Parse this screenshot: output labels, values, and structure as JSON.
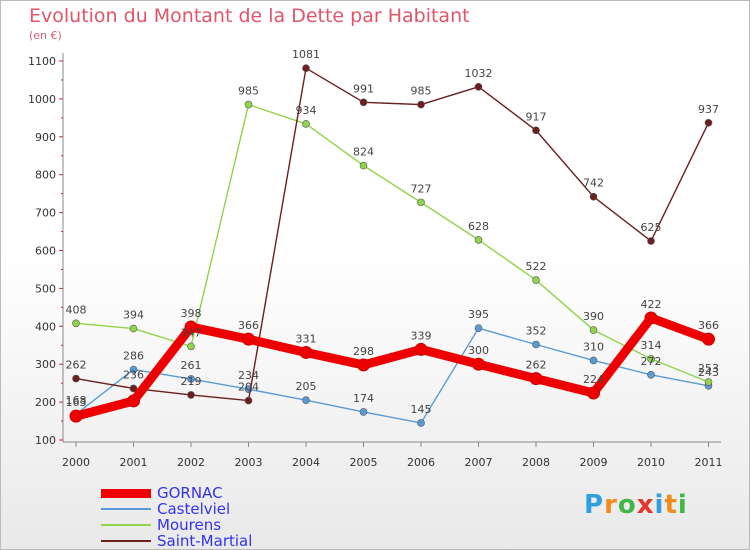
{
  "chart_data": {
    "type": "line",
    "title": "Evolution du Montant de la Dette par Habitant",
    "unit_label": "(en €)",
    "x": [
      "2000",
      "2001",
      "2002",
      "2003",
      "2004",
      "2005",
      "2006",
      "2007",
      "2008",
      "2009",
      "2010",
      "2011"
    ],
    "ylim": [
      100,
      1100
    ],
    "yticks": [
      100,
      200,
      300,
      400,
      500,
      600,
      700,
      800,
      900,
      1000,
      1100
    ],
    "grid": false,
    "legend_position": "bottom-left",
    "series": [
      {
        "name": "GORNAC",
        "color": "#ee0000",
        "values": [
          163,
          203,
          398,
          366,
          331,
          298,
          339,
          300,
          262,
          224,
          422,
          366
        ],
        "labels": [
          "163",
          "",
          "398",
          "366",
          "331",
          "298",
          "339",
          "300",
          "262",
          "224",
          "422",
          "366"
        ]
      },
      {
        "name": "Castelviel",
        "color": "#5b9bd5",
        "values": [
          168,
          286,
          261,
          234,
          205,
          174,
          145,
          395,
          352,
          310,
          272,
          243
        ],
        "labels": [
          "168",
          "286",
          "261",
          "234",
          "205",
          "174",
          "145",
          "395",
          "352",
          "310",
          "272",
          "243"
        ]
      },
      {
        "name": "Mourens",
        "color": "#8fd44a",
        "values": [
          408,
          394,
          347,
          985,
          934,
          824,
          727,
          628,
          522,
          390,
          314,
          253
        ],
        "labels": [
          "408",
          "394",
          "347",
          "985",
          "934",
          "824",
          "727",
          "628",
          "522",
          "390",
          "314",
          "253"
        ]
      },
      {
        "name": "Saint-Martial",
        "color": "#6b1f1f",
        "values": [
          262,
          236,
          219,
          204,
          1081,
          991,
          985,
          1032,
          917,
          742,
          625,
          937
        ],
        "labels": [
          "262",
          "236",
          "219",
          "204",
          "1081",
          "991",
          "985",
          "1032",
          "917",
          "742",
          "625",
          "937"
        ]
      }
    ]
  },
  "legend": {
    "items": [
      {
        "label": "GORNAC",
        "color": "#ee0000",
        "text_color": "#3333ee",
        "thickness": 9
      },
      {
        "label": "Castelviel",
        "color": "#5b9bd5",
        "text_color": "#3333ee",
        "thickness": 2
      },
      {
        "label": "Mourens",
        "color": "#8fd44a",
        "text_color": "#3333ee",
        "thickness": 2
      },
      {
        "label": "Saint-Martial",
        "color": "#6b1f1f",
        "text_color": "#3333ee",
        "thickness": 2
      }
    ]
  },
  "logo": {
    "text": "Proxiti",
    "letters": [
      {
        "ch": "P",
        "color": "#2f9fe0"
      },
      {
        "ch": "r",
        "color": "#f08c1a"
      },
      {
        "ch": "o",
        "color": "#43b649"
      },
      {
        "ch": "x",
        "color": "#e8352b"
      },
      {
        "ch": "i",
        "color": "#2f9fe0"
      },
      {
        "ch": "t",
        "color": "#f08c1a"
      },
      {
        "ch": "i",
        "color": "#43b649"
      }
    ]
  }
}
